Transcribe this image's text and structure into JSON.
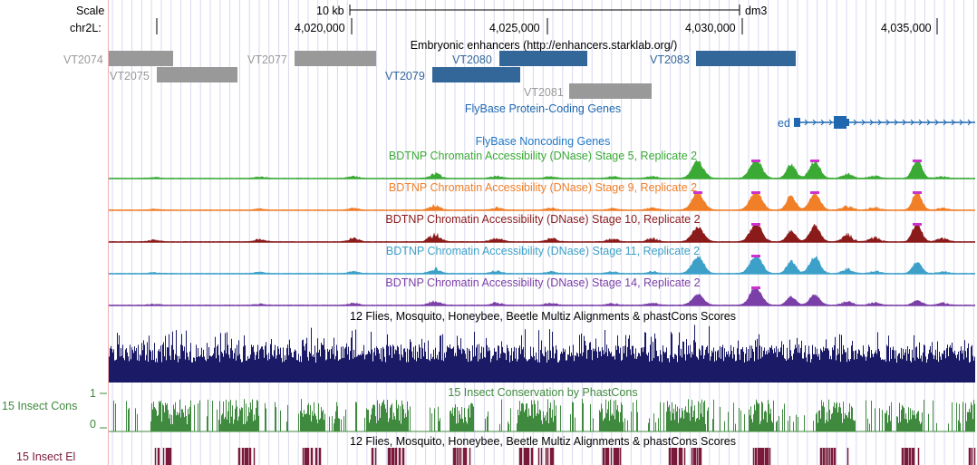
{
  "ruler": {
    "scale_label": "Scale",
    "scale_value": "10 kb",
    "assembly": "dm3",
    "chrom_label": "chr2L:",
    "positions": [
      "4,020,000",
      "4,025,000",
      "4,030,000",
      "4,035,000"
    ]
  },
  "tracks": {
    "enhancers": {
      "title": "Embryonic enhancers (http://enhancers.starklab.org/)",
      "items": [
        {
          "name": "VT2074",
          "color": "#999999",
          "label_color": "#999999"
        },
        {
          "name": "VT2075",
          "color": "#999999",
          "label_color": "#999999"
        },
        {
          "name": "VT2077",
          "color": "#999999",
          "label_color": "#999999"
        },
        {
          "name": "VT2079",
          "color": "#336699",
          "label_color": "#336699"
        },
        {
          "name": "VT2080",
          "color": "#336699",
          "label_color": "#336699"
        },
        {
          "name": "VT2081",
          "color": "#999999",
          "label_color": "#999999"
        },
        {
          "name": "VT2083",
          "color": "#336699",
          "label_color": "#336699"
        }
      ]
    },
    "flybase_coding": {
      "title": "FlyBase Protein-Coding Genes",
      "gene": "ed",
      "color": "#1f68b0"
    },
    "flybase_noncoding": {
      "title": "FlyBase Noncoding Genes",
      "color": "#1f78c8"
    },
    "dnase": [
      {
        "title": "BDTNP Chromatin Accessibility (DNase) Stage 5, Replicate 2",
        "color": "#3aaa35"
      },
      {
        "title": "BDTNP Chromatin Accessibility (DNase) Stage 9, Replicate 2",
        "color": "#f07f28"
      },
      {
        "title": "BDTNP Chromatin Accessibility (DNase) Stage 10, Replicate 2",
        "color": "#8b1a1a"
      },
      {
        "title": "BDTNP Chromatin Accessibility (DNase) Stage 11, Replicate 2",
        "color": "#3ca0c8"
      },
      {
        "title": "BDTNP Chromatin Accessibility (DNase) Stage 14, Replicate 2",
        "color": "#7b3fa8"
      }
    ],
    "multiz": {
      "title": "12 Flies, Mosquito, Honeybee, Beetle Multiz Alignments & phastCons Scores",
      "color": "#1a1a66"
    },
    "phastcons": {
      "title": "15 Insect Conservation by PhastCons",
      "left_label": "15 Insect Cons",
      "axis_max": "1",
      "axis_min": "0",
      "color": "#3f8a3f"
    },
    "elements": {
      "title": "12 Flies, Mosquito, Honeybee, Beetle Multiz Alignments & phastCons Scores",
      "left_label": "15 Insect El",
      "color": "#7a1a3a"
    }
  },
  "colors": {
    "grid": "#d8d8f0",
    "left_margin_line": "#f0b0b0",
    "peak_cap": "#cc33cc"
  }
}
